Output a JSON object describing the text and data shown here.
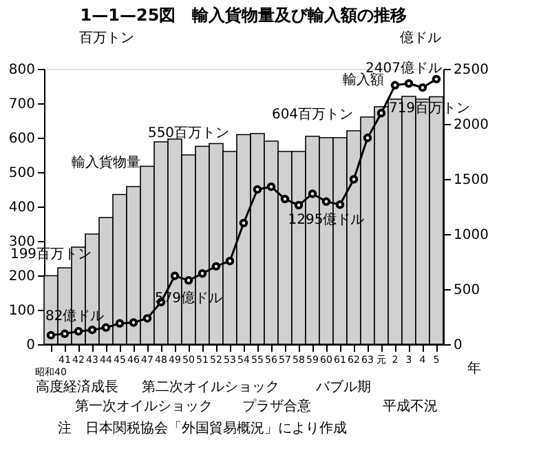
{
  "chart_data": {
    "type": "bar",
    "title": "1—1—25図　輸入貨物量及び輸入額の推移",
    "categories": [
      "昭和40",
      "41",
      "42",
      "43",
      "44",
      "45",
      "46",
      "47",
      "48",
      "49",
      "50",
      "51",
      "52",
      "53",
      "54",
      "55",
      "56",
      "57",
      "58",
      "59",
      "60",
      "61",
      "62",
      "63",
      "元",
      "2",
      "3",
      "4",
      "5"
    ],
    "xlabel": "年",
    "ylabel": "百万トン",
    "y2label": "億ドル",
    "ylim": [
      0,
      800
    ],
    "yticks": [
      0,
      100,
      200,
      300,
      400,
      500,
      600,
      700,
      800
    ],
    "y2lim": [
      0,
      2500
    ],
    "y2ticks": [
      0,
      500,
      1000,
      1500,
      2000,
      2500
    ],
    "grid": false,
    "legend": false,
    "series": [
      {
        "name": "輸入貨物量",
        "color": "#d0d0d0",
        "values": [
          199,
          222,
          282,
          320,
          368,
          435,
          458,
          517,
          588,
          596,
          550,
          575,
          583,
          560,
          609,
          612,
          590,
          560,
          560,
          604,
          600,
          600,
          620,
          660,
          690,
          712,
          720,
          712,
          719
        ],
        "value_labels": [
          "199百万トン",
          null,
          null,
          null,
          null,
          null,
          null,
          null,
          null,
          null,
          "550百万トン",
          null,
          null,
          null,
          null,
          null,
          null,
          null,
          null,
          "604百万トン",
          null,
          null,
          null,
          null,
          null,
          null,
          null,
          null,
          "719百万トン"
        ]
      },
      {
        "name": "輸入額",
        "type": "line",
        "axis": "y2",
        "color": "#000000",
        "marker": "circle",
        "line_style": "solid",
        "values": [
          82,
          95,
          117,
          130,
          151,
          189,
          197,
          235,
          383,
          621,
          579,
          642,
          707,
          755,
          1100,
          1405,
          1430,
          1318,
          1262,
          1366,
          1295,
          1267,
          1497,
          1873,
          2098,
          2351,
          2367,
          2330,
          2407
        ],
        "value_labels": [
          "82億ドル",
          null,
          null,
          null,
          null,
          null,
          null,
          null,
          null,
          null,
          "579億ドル",
          null,
          null,
          null,
          null,
          null,
          null,
          null,
          null,
          null,
          "1295億ドル",
          null,
          null,
          null,
          null,
          null,
          null,
          null,
          "2407億ドル"
        ]
      }
    ],
    "annotations": [
      "高度経済成長",
      "第一次オイルショック",
      "第二次オイルショック",
      "プラザ合意",
      "バブル期",
      "平成不況",
      "注　日本関税協会「外国貿易概況」により作成"
    ]
  }
}
